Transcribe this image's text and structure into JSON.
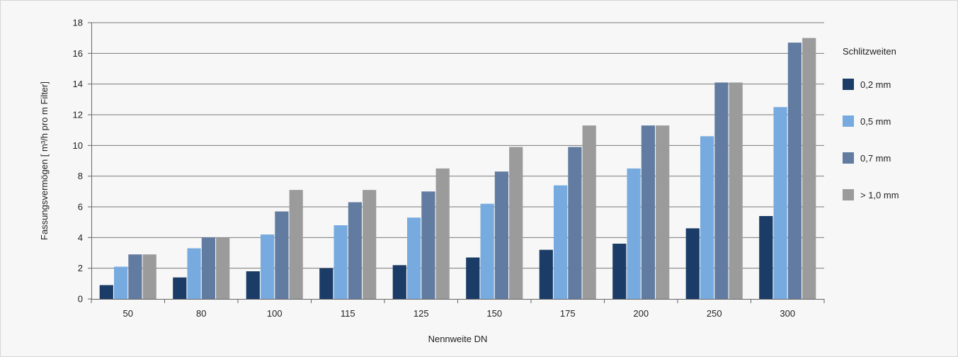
{
  "chart_data": {
    "type": "bar",
    "categories": [
      "50",
      "80",
      "100",
      "115",
      "125",
      "150",
      "175",
      "200",
      "250",
      "300"
    ],
    "series": [
      {
        "name": "0,2 mm",
        "color": "#1b3c66",
        "values": [
          0.9,
          1.4,
          1.8,
          2.0,
          2.2,
          2.7,
          3.2,
          3.6,
          4.6,
          5.4
        ]
      },
      {
        "name": "0,5 mm",
        "color": "#77abdf",
        "values": [
          2.1,
          3.3,
          4.2,
          4.8,
          5.3,
          6.2,
          7.4,
          8.5,
          10.6,
          12.5
        ]
      },
      {
        "name": "0,7 mm",
        "color": "#627ba0",
        "values": [
          2.9,
          4.0,
          5.7,
          6.3,
          7.0,
          8.3,
          9.9,
          11.3,
          14.1,
          16.7
        ]
      },
      {
        "name": "> 1,0 mm",
        "color": "#9b9b9b",
        "values": [
          2.9,
          4.0,
          7.1,
          7.1,
          8.5,
          9.9,
          11.3,
          11.3,
          14.1,
          17.0
        ]
      }
    ],
    "xlabel": "Nennweite DN",
    "ylabel": "Fassungsvermögen [ m³/h pro m Filter]",
    "ylim": [
      0,
      18
    ],
    "yticks": [
      0,
      2,
      4,
      6,
      8,
      10,
      12,
      14,
      16,
      18
    ],
    "grid": true,
    "legend": {
      "title": "Schlitzweiten",
      "position": "right"
    }
  }
}
